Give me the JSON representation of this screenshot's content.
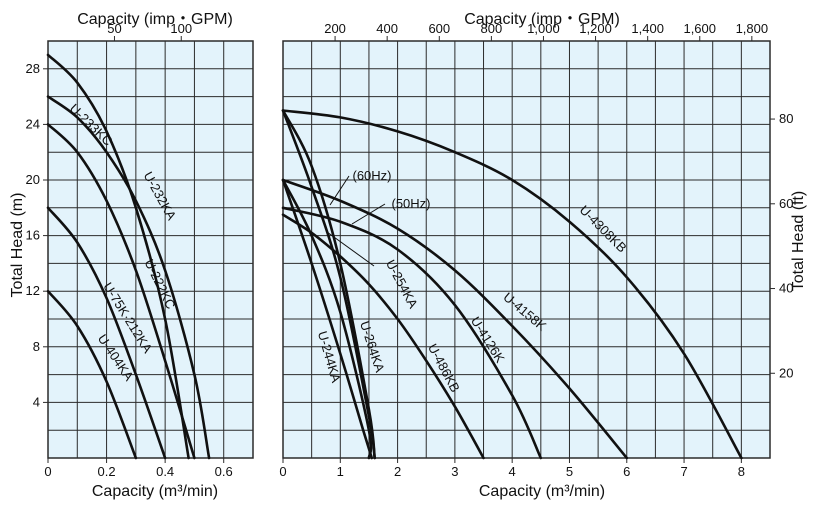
{
  "chart_data": [
    {
      "panel": "left",
      "type": "line",
      "xlabel": "Capacity (m³/min)",
      "x2label": "Capacity (imp・GPM)",
      "ylabel": "Total Head (m)",
      "xlim": [
        0,
        0.7
      ],
      "ylim": [
        0,
        30
      ],
      "x_ticks": [
        "0",
        "0.2",
        "0.4",
        "0.6"
      ],
      "x_tick_values": [
        0,
        0.2,
        0.4,
        0.6
      ],
      "x2_ticks": [
        "50",
        "100"
      ],
      "x2_tick_values_m3min": [
        0.227,
        0.455
      ],
      "y_ticks": [
        "4",
        "8",
        "12",
        "16",
        "20",
        "24",
        "28"
      ],
      "y_tick_values": [
        4,
        8,
        12,
        16,
        20,
        24,
        28
      ],
      "grid": true,
      "series": [
        {
          "name": "U-233KC",
          "x": [
            0,
            0.1,
            0.2,
            0.3,
            0.4,
            0.48
          ],
          "y": [
            29,
            27,
            23.5,
            18,
            10,
            0
          ]
        },
        {
          "name": "U-232KA",
          "x": [
            0,
            0.1,
            0.2,
            0.3,
            0.4,
            0.5,
            0.55
          ],
          "y": [
            26,
            24.5,
            22,
            18.5,
            13.5,
            6,
            0
          ]
        },
        {
          "name": "U-222KC",
          "x": [
            0,
            0.1,
            0.2,
            0.3,
            0.4,
            0.5
          ],
          "y": [
            24,
            22,
            18.5,
            13.5,
            7,
            0
          ]
        },
        {
          "name": "U-75K·212KA",
          "x": [
            0,
            0.1,
            0.2,
            0.3,
            0.4
          ],
          "y": [
            18,
            15.5,
            11.5,
            6,
            0
          ]
        },
        {
          "name": "U-404KA",
          "x": [
            0,
            0.1,
            0.2,
            0.3
          ],
          "y": [
            12,
            9.5,
            5.5,
            0
          ]
        }
      ]
    },
    {
      "panel": "right",
      "type": "line",
      "xlabel": "Capacity (m³/min)",
      "x2label": "Capacity (imp・GPM)",
      "y2label": "Total Head (ft)",
      "xlim": [
        0,
        8.5
      ],
      "ylim": [
        0,
        30
      ],
      "x_ticks": [
        "0",
        "1",
        "2",
        "3",
        "4",
        "5",
        "6",
        "7",
        "8"
      ],
      "x_tick_values": [
        0,
        1,
        2,
        3,
        4,
        5,
        6,
        7,
        8
      ],
      "x2_ticks": [
        "200",
        "400",
        "600",
        "800",
        "1,000",
        "1,200",
        "1,400",
        "1,600",
        "1,800"
      ],
      "x2_tick_values_m3min": [
        0.909,
        1.818,
        2.728,
        3.637,
        4.546,
        5.455,
        6.365,
        7.274,
        8.183
      ],
      "y2_ticks": [
        "20",
        "40",
        "60",
        "80"
      ],
      "y2_tick_values_m": [
        6.096,
        12.192,
        18.288,
        24.384
      ],
      "grid": true,
      "callouts": [
        "(60Hz)",
        "(50Hz)"
      ],
      "series": [
        {
          "name": "U-4308KB",
          "x": [
            0,
            1,
            2,
            3,
            4,
            5,
            6,
            7,
            8
          ],
          "y": [
            25,
            24.5,
            23.5,
            22,
            20,
            17,
            13,
            7.5,
            0
          ]
        },
        {
          "name": "U-4158K",
          "x": [
            0,
            1,
            2,
            3,
            4,
            5,
            6
          ],
          "y": [
            20,
            18.5,
            16.5,
            13.5,
            9.5,
            5,
            0
          ]
        },
        {
          "name": "U-4126K",
          "x": [
            0,
            1,
            2,
            3,
            4,
            4.5
          ],
          "y": [
            18,
            17,
            15,
            11,
            4.5,
            0
          ]
        },
        {
          "name": "U-486KB",
          "x": [
            0,
            0.5,
            1,
            1.5,
            2,
            2.5,
            3,
            3.5
          ],
          "y": [
            17.5,
            16.2,
            14.5,
            12.5,
            10,
            7,
            3.7,
            0
          ]
        },
        {
          "name": "U-254KA (60Hz)",
          "x": [
            0,
            0.5,
            1,
            1.5,
            1.6
          ],
          "y": [
            25,
            19.5,
            13,
            3,
            0
          ]
        },
        {
          "name": "U-254KA (50Hz)",
          "x": [
            0,
            0.5,
            1,
            1.5,
            1.5
          ],
          "y": [
            20,
            16,
            10.5,
            2,
            0
          ]
        },
        {
          "name": "U-264KA",
          "x": [
            0,
            0.5,
            1,
            1.5,
            1.6
          ],
          "y": [
            25,
            21,
            14,
            3.5,
            0
          ]
        },
        {
          "name": "U-244KA",
          "x": [
            0,
            0.5,
            1,
            1.4,
            1.55
          ],
          "y": [
            20,
            14,
            7.5,
            2,
            0
          ]
        }
      ]
    }
  ],
  "curve_labels": {
    "U-233KC": "U-233KC",
    "U-232KA": "U-232KA",
    "U-222KC": "U-222KC",
    "U-75K·212KA": "U-75K·212KA",
    "U-404KA": "U-404KA",
    "U-4308KB": "U-4308KB",
    "U-4158K": "U-4158K",
    "U-4126K": "U-4126K",
    "U-486KB": "U-486KB",
    "U-254KA": "U-254KA",
    "U-264KA": "U-264KA",
    "U-244KA": "U-244KA"
  },
  "colors": {
    "background": "#ffffff",
    "panel_fill": "#e3f3fb",
    "grid": "#2b2b2b",
    "curve": "#111111"
  }
}
